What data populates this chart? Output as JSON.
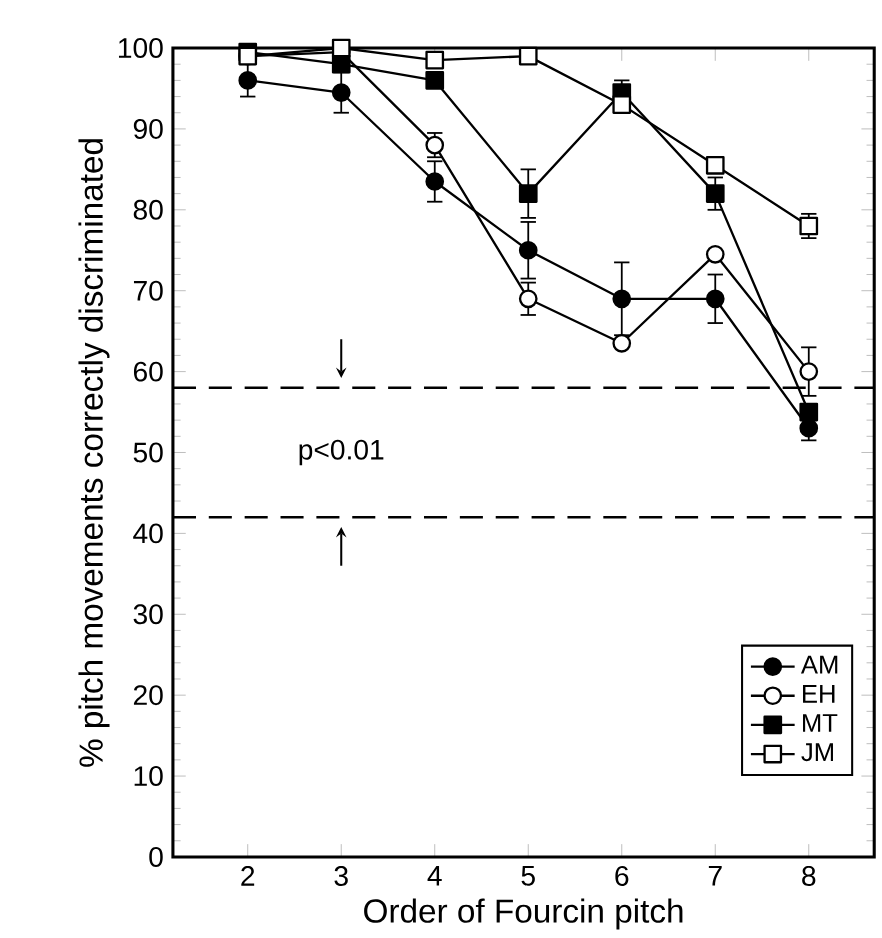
{
  "chart_data": {
    "type": "line",
    "xlabel": "Order of Fourcin pitch",
    "ylabel": "% pitch movements correctly discriminated",
    "x": [
      2,
      3,
      4,
      5,
      6,
      7,
      8
    ],
    "series": [
      {
        "name": "AM",
        "color": "#000000",
        "marker": "circle",
        "values": [
          96,
          94.5,
          83.5,
          75,
          69,
          69,
          53
        ],
        "errors": [
          2,
          2.5,
          2.5,
          3.5,
          4.5,
          3,
          1.5
        ]
      },
      {
        "name": "EH",
        "color": "#000000",
        "marker": "circle",
        "values": [
          99,
          99.5,
          88,
          69,
          63.5,
          74.5,
          60
        ],
        "errors": [
          null,
          null,
          1.5,
          2,
          null,
          null,
          3
        ]
      },
      {
        "name": "MT",
        "color": "#000000",
        "marker": "square",
        "values": [
          99.5,
          98,
          96,
          82,
          94.5,
          82,
          55
        ],
        "errors": [
          null,
          null,
          null,
          3,
          1.5,
          2,
          null
        ]
      },
      {
        "name": "JM",
        "color": "#000000",
        "marker": "square",
        "values": [
          99,
          100,
          98.5,
          99,
          93,
          85.5,
          78
        ],
        "errors": [
          null,
          null,
          null,
          null,
          null,
          null,
          1.5
        ]
      }
    ],
    "xlim": [
      1.2,
      8.7
    ],
    "xticks": [
      2,
      3,
      4,
      5,
      6,
      7,
      8
    ],
    "ylim": [
      0,
      100
    ],
    "yticks": [
      0,
      10,
      20,
      30,
      40,
      50,
      60,
      70,
      80,
      90,
      100
    ],
    "ref_lines": [
      {
        "axis": "y",
        "value": 58,
        "line_style": "dashed",
        "color": "#000000"
      },
      {
        "axis": "y",
        "value": 42,
        "line_style": "dashed",
        "color": "#000000"
      }
    ],
    "annotations": [
      "p<0.01"
    ],
    "grid": false,
    "legend": "bottom right",
    "line_style": "solid"
  }
}
